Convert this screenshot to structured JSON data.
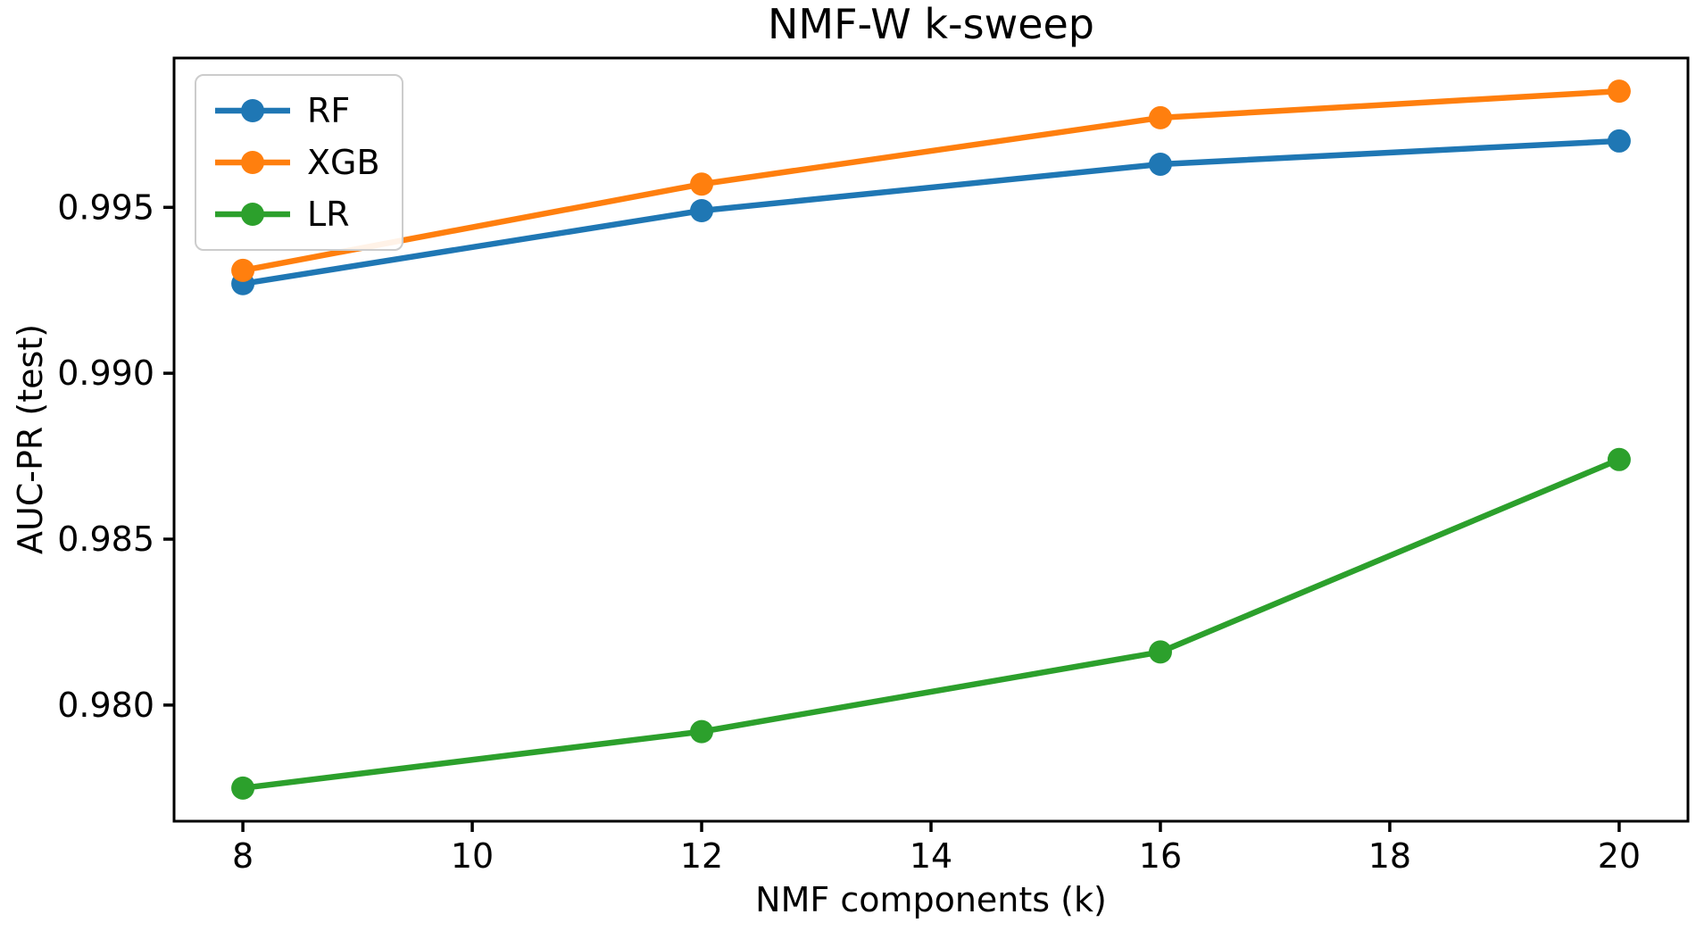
{
  "chart_data": {
    "type": "line",
    "title": "NMF-W k-sweep",
    "xlabel": "NMF components (k)",
    "ylabel": "AUC-PR (test)",
    "x": [
      8,
      12,
      16,
      20
    ],
    "series": [
      {
        "name": "RF",
        "color": "#1f77b4",
        "values": [
          0.9927,
          0.9949,
          0.9963,
          0.997
        ]
      },
      {
        "name": "XGB",
        "color": "#ff7f0e",
        "values": [
          0.9931,
          0.9957,
          0.9977,
          0.9985
        ]
      },
      {
        "name": "LR",
        "color": "#2ca02c",
        "values": [
          0.9775,
          0.9792,
          0.9816,
          0.9874
        ]
      }
    ],
    "xticks": [
      8,
      10,
      12,
      14,
      16,
      18,
      20
    ],
    "yticks": [
      0.98,
      0.985,
      0.99,
      0.995
    ],
    "xlim": [
      7.4,
      20.6
    ],
    "ylim": [
      0.9765,
      0.9995
    ],
    "grid": false,
    "legend_position": "upper-left",
    "marker": "circle",
    "background_color": "#ffffff",
    "axis_color": "#000000"
  }
}
